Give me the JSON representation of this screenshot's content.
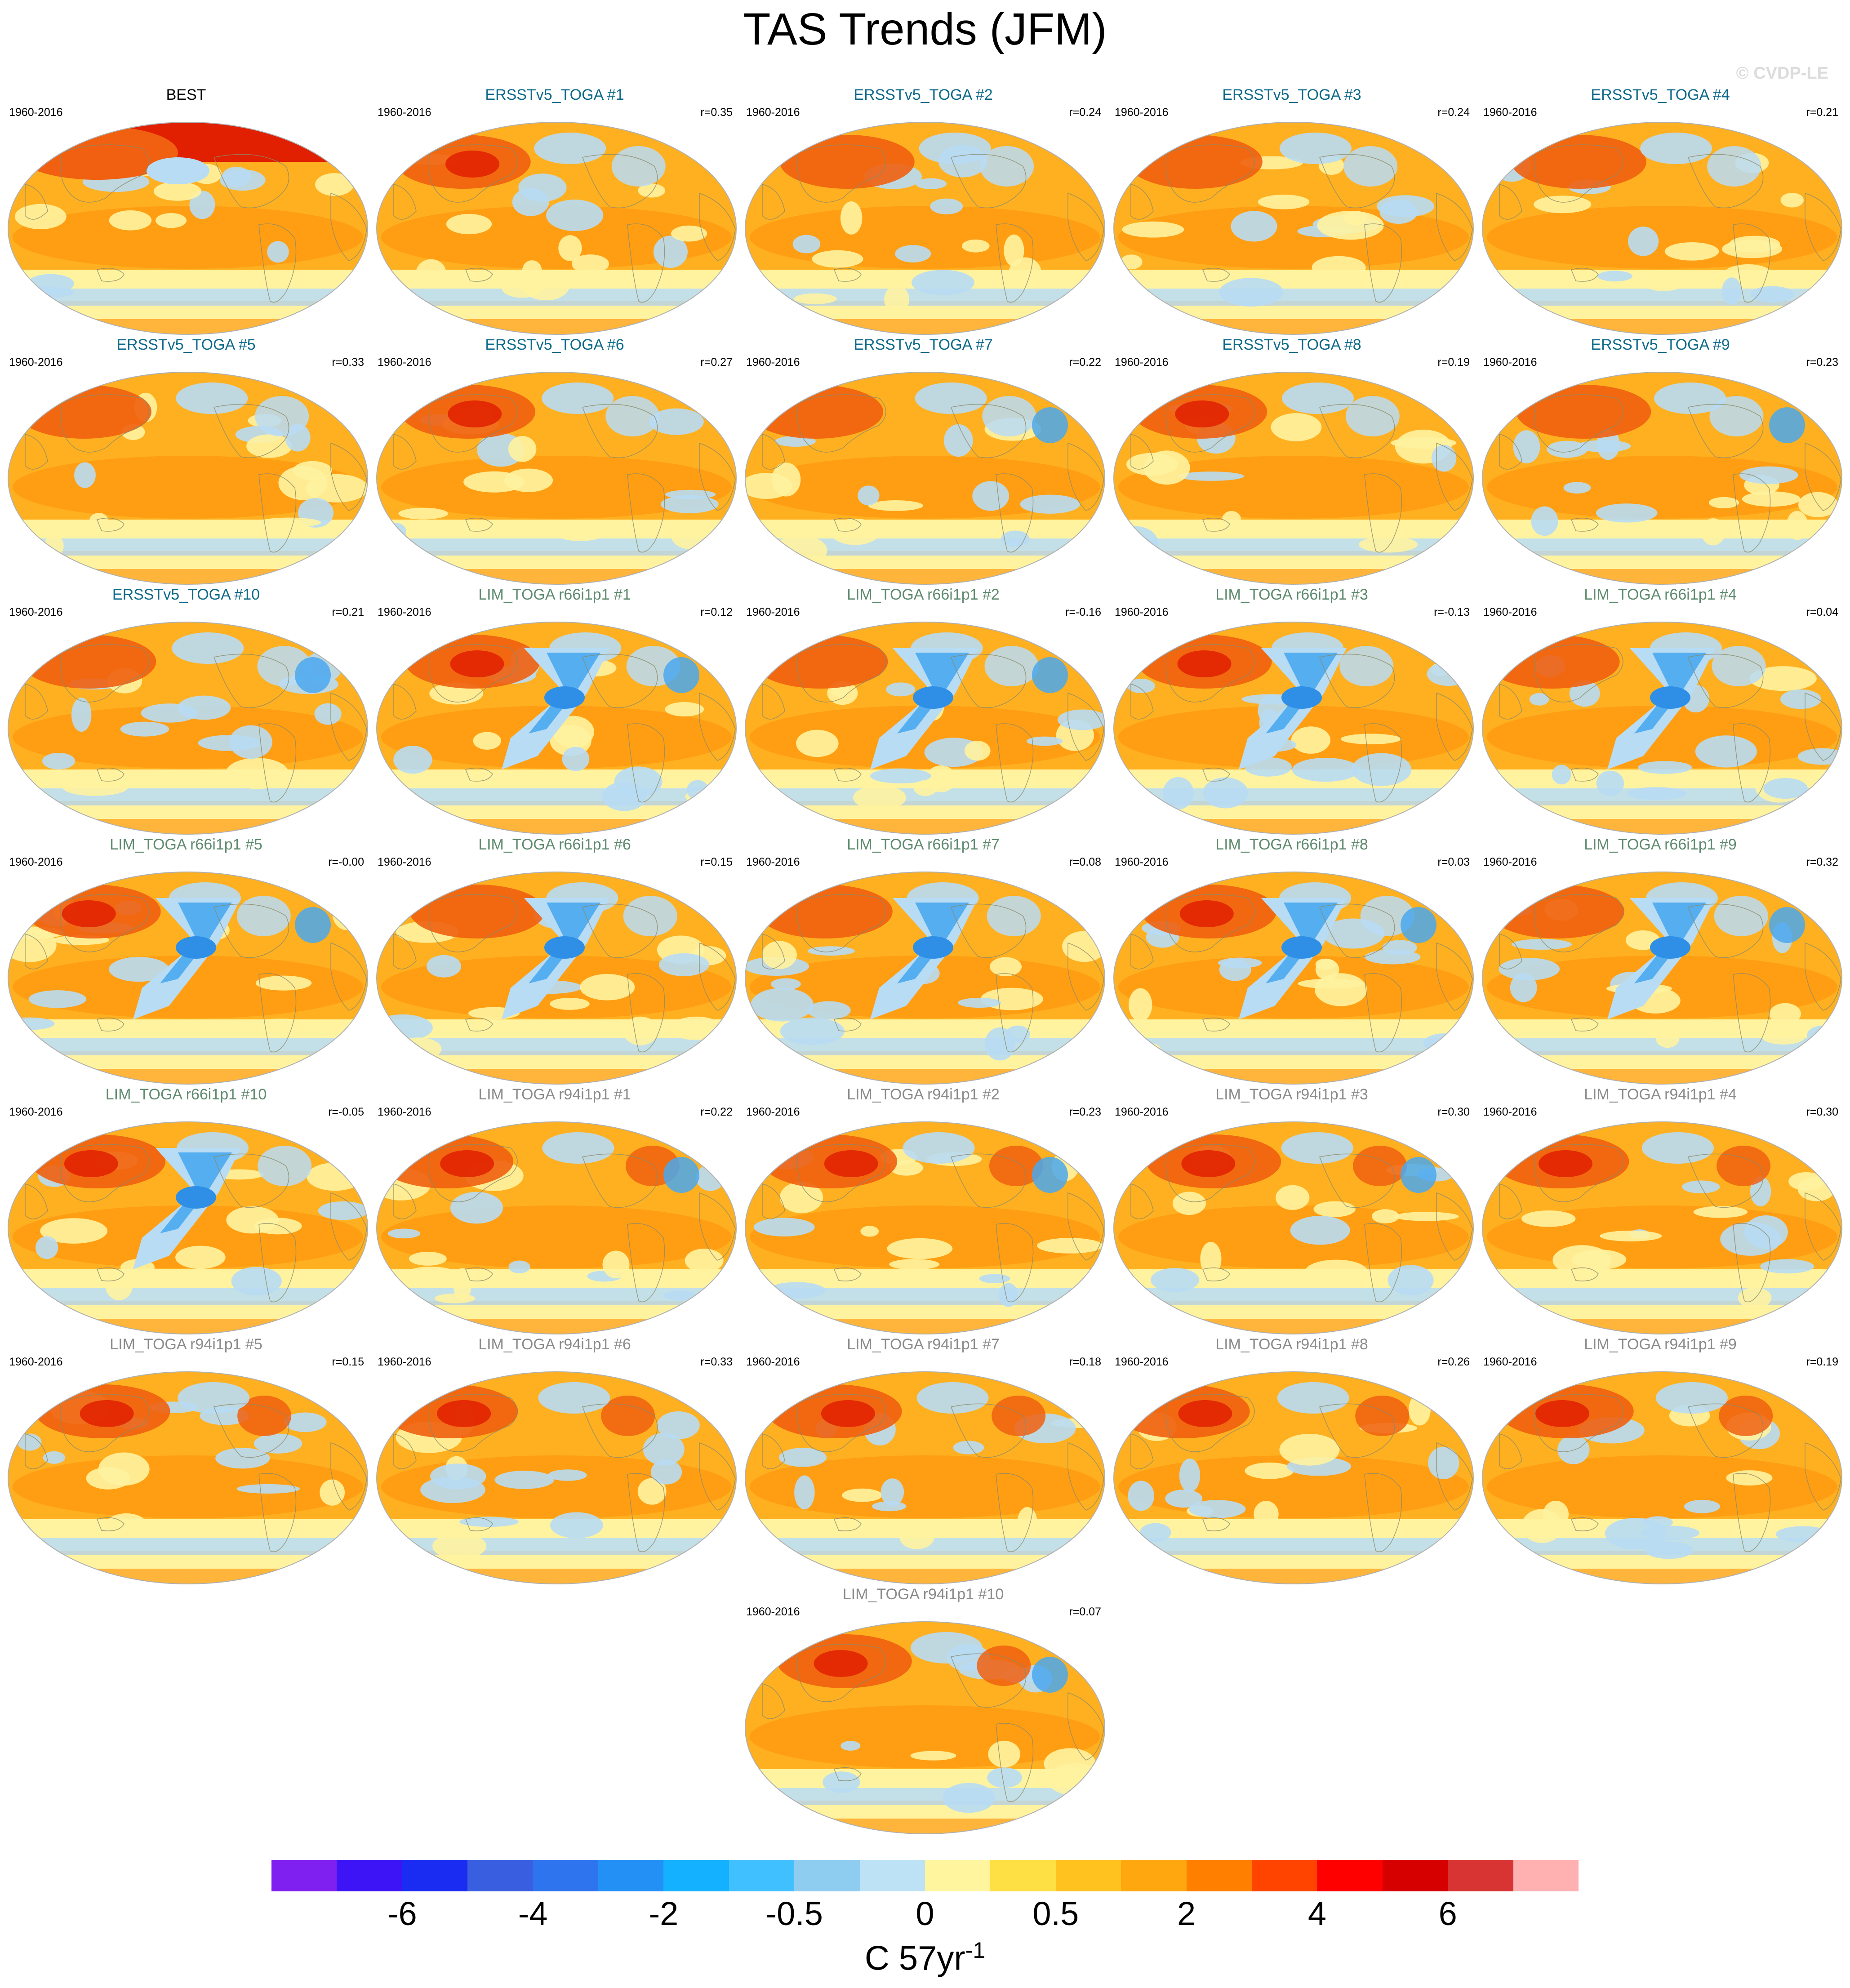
{
  "figure": {
    "title": "TAS Trends (JFM)",
    "watermark": "© CVDP-LE",
    "units_text": "C 57yr",
    "units_sup": "-1"
  },
  "panels": [
    {
      "title": "BEST",
      "period": "1960-2016",
      "corr": "",
      "title_color": "#000000"
    },
    {
      "title": "ERSSTv5_TOGA #1",
      "period": "1960-2016",
      "corr": "r=0.35",
      "title_color": "#0e6a8a"
    },
    {
      "title": "ERSSTv5_TOGA #2",
      "period": "1960-2016",
      "corr": "r=0.24",
      "title_color": "#0e6a8a"
    },
    {
      "title": "ERSSTv5_TOGA #3",
      "period": "1960-2016",
      "corr": "r=0.24",
      "title_color": "#0e6a8a"
    },
    {
      "title": "ERSSTv5_TOGA #4",
      "period": "1960-2016",
      "corr": "r=0.21",
      "title_color": "#0e6a8a"
    },
    {
      "title": "ERSSTv5_TOGA #5",
      "period": "1960-2016",
      "corr": "r=0.33",
      "title_color": "#0e6a8a"
    },
    {
      "title": "ERSSTv5_TOGA #6",
      "period": "1960-2016",
      "corr": "r=0.27",
      "title_color": "#0e6a8a"
    },
    {
      "title": "ERSSTv5_TOGA #7",
      "period": "1960-2016",
      "corr": "r=0.22",
      "title_color": "#0e6a8a"
    },
    {
      "title": "ERSSTv5_TOGA #8",
      "period": "1960-2016",
      "corr": "r=0.19",
      "title_color": "#0e6a8a"
    },
    {
      "title": "ERSSTv5_TOGA #9",
      "period": "1960-2016",
      "corr": "r=0.23",
      "title_color": "#0e6a8a"
    },
    {
      "title": "ERSSTv5_TOGA #10",
      "period": "1960-2016",
      "corr": "r=0.21",
      "title_color": "#0e6a8a"
    },
    {
      "title": "LIM_TOGA r66i1p1 #1",
      "period": "1960-2016",
      "corr": "r=0.12",
      "title_color": "#5e8a6e"
    },
    {
      "title": "LIM_TOGA r66i1p1 #2",
      "period": "1960-2016",
      "corr": "r=-0.16",
      "title_color": "#5e8a6e"
    },
    {
      "title": "LIM_TOGA r66i1p1 #3",
      "period": "1960-2016",
      "corr": "r=-0.13",
      "title_color": "#5e8a6e"
    },
    {
      "title": "LIM_TOGA r66i1p1 #4",
      "period": "1960-2016",
      "corr": "r=0.04",
      "title_color": "#5e8a6e"
    },
    {
      "title": "LIM_TOGA r66i1p1 #5",
      "period": "1960-2016",
      "corr": "r=-0.00",
      "title_color": "#5e8a6e"
    },
    {
      "title": "LIM_TOGA r66i1p1 #6",
      "period": "1960-2016",
      "corr": "r=0.15",
      "title_color": "#5e8a6e"
    },
    {
      "title": "LIM_TOGA r66i1p1 #7",
      "period": "1960-2016",
      "corr": "r=0.08",
      "title_color": "#5e8a6e"
    },
    {
      "title": "LIM_TOGA r66i1p1 #8",
      "period": "1960-2016",
      "corr": "r=0.03",
      "title_color": "#5e8a6e"
    },
    {
      "title": "LIM_TOGA r66i1p1 #9",
      "period": "1960-2016",
      "corr": "r=0.32",
      "title_color": "#5e8a6e"
    },
    {
      "title": "LIM_TOGA r66i1p1 #10",
      "period": "1960-2016",
      "corr": "r=-0.05",
      "title_color": "#5e8a6e"
    },
    {
      "title": "LIM_TOGA r94i1p1 #1",
      "period": "1960-2016",
      "corr": "r=0.22",
      "title_color": "#8a8a8a"
    },
    {
      "title": "LIM_TOGA r94i1p1 #2",
      "period": "1960-2016",
      "corr": "r=0.23",
      "title_color": "#8a8a8a"
    },
    {
      "title": "LIM_TOGA r94i1p1 #3",
      "period": "1960-2016",
      "corr": "r=0.30",
      "title_color": "#8a8a8a"
    },
    {
      "title": "LIM_TOGA r94i1p1 #4",
      "period": "1960-2016",
      "corr": "r=0.30",
      "title_color": "#8a8a8a"
    },
    {
      "title": "LIM_TOGA r94i1p1 #5",
      "period": "1960-2016",
      "corr": "r=0.15",
      "title_color": "#8a8a8a"
    },
    {
      "title": "LIM_TOGA r94i1p1 #6",
      "period": "1960-2016",
      "corr": "r=0.33",
      "title_color": "#8a8a8a"
    },
    {
      "title": "LIM_TOGA r94i1p1 #7",
      "period": "1960-2016",
      "corr": "r=0.18",
      "title_color": "#8a8a8a"
    },
    {
      "title": "LIM_TOGA r94i1p1 #8",
      "period": "1960-2016",
      "corr": "r=0.26",
      "title_color": "#8a8a8a"
    },
    {
      "title": "LIM_TOGA r94i1p1 #9",
      "period": "1960-2016",
      "corr": "r=0.19",
      "title_color": "#8a8a8a"
    },
    {
      "title": "LIM_TOGA r94i1p1 #10",
      "period": "1960-2016",
      "corr": "r=0.07",
      "title_color": "#8a8a8a"
    }
  ],
  "colorbar": {
    "colors": [
      "#7f1ff0",
      "#3d14f5",
      "#1a2bf2",
      "#3a5ee0",
      "#2e74ee",
      "#2390f5",
      "#13b1ff",
      "#41c0ff",
      "#8ecdf0",
      "#bde2f6",
      "#fff59f",
      "#ffe044",
      "#ffc21f",
      "#ffa70e",
      "#ff7f00",
      "#ff4400",
      "#ff0000",
      "#d60000",
      "#d93434",
      "#ffb0b0"
    ],
    "labels": [
      "-6",
      "-4",
      "-2",
      "-0.5",
      "0",
      "0.5",
      "2",
      "4",
      "6"
    ]
  },
  "map_colors": {
    "warm_base": "#ffb020",
    "warm_mid": "#ff9a10",
    "hot": "#f06010",
    "very_hot": "#e02000",
    "pale": "#fff3a0",
    "cool": "#b8dcf4",
    "cold": "#4aa8ee",
    "very_cold": "#2f8fe6",
    "land_line": "#8a8a6a"
  }
}
